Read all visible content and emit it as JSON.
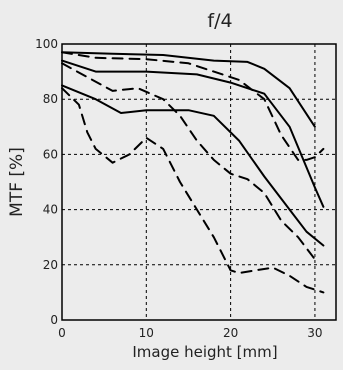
{
  "chart_data": {
    "type": "line",
    "title": "f/4",
    "xlabel": "Image height [mm]",
    "ylabel": "MTF [%]",
    "xlim": [
      0,
      32.5
    ],
    "ylim": [
      0,
      100
    ],
    "x_ticks": [
      {
        "value": 0,
        "label": "0"
      },
      {
        "value": 10,
        "label": "10"
      },
      {
        "value": 20,
        "label": "20"
      },
      {
        "value": 30,
        "label": "30"
      }
    ],
    "y_ticks": [
      {
        "value": 0,
        "label": "0"
      },
      {
        "value": 20,
        "label": "20"
      },
      {
        "value": 40,
        "label": "40"
      },
      {
        "value": 60,
        "label": "60"
      },
      {
        "value": 80,
        "label": "80"
      },
      {
        "value": 100,
        "label": "100"
      }
    ],
    "grid": true,
    "line_color": "#000000",
    "grid_color": "#000000",
    "background_color": "#ececec",
    "series": [
      {
        "style": "solid",
        "points": [
          [
            0,
            97
          ],
          [
            6,
            96.5
          ],
          [
            12,
            96
          ],
          [
            18,
            94
          ],
          [
            22,
            93.5
          ],
          [
            24,
            91
          ],
          [
            27,
            84
          ],
          [
            30,
            70
          ]
        ]
      },
      {
        "style": "solid",
        "points": [
          [
            0,
            94
          ],
          [
            4,
            90
          ],
          [
            10,
            90
          ],
          [
            16,
            89
          ],
          [
            20,
            86
          ],
          [
            24,
            82
          ],
          [
            27,
            70
          ],
          [
            30,
            48
          ],
          [
            31,
            41
          ]
        ]
      },
      {
        "style": "solid",
        "points": [
          [
            0,
            85
          ],
          [
            4,
            80
          ],
          [
            7,
            75
          ],
          [
            10,
            76
          ],
          [
            12,
            76
          ],
          [
            15,
            76
          ],
          [
            18,
            74
          ],
          [
            21,
            65
          ],
          [
            24,
            52
          ],
          [
            27,
            40
          ],
          [
            29,
            32
          ],
          [
            31,
            27
          ]
        ]
      },
      {
        "style": "dashed",
        "points": [
          [
            0,
            97
          ],
          [
            4,
            95
          ],
          [
            10,
            94.5
          ],
          [
            15,
            93
          ],
          [
            18,
            90
          ],
          [
            21,
            87
          ],
          [
            24,
            80
          ],
          [
            26,
            67
          ],
          [
            28,
            58
          ],
          [
            29,
            58
          ],
          [
            30,
            59
          ],
          [
            31,
            62
          ]
        ]
      },
      {
        "style": "dashed",
        "points": [
          [
            0,
            93
          ],
          [
            3,
            88
          ],
          [
            6,
            83
          ],
          [
            9,
            84
          ],
          [
            12,
            80
          ],
          [
            14,
            74
          ],
          [
            16,
            65
          ],
          [
            18,
            58
          ],
          [
            20,
            53
          ],
          [
            22,
            51
          ],
          [
            24,
            46
          ],
          [
            26,
            36
          ],
          [
            28,
            30
          ],
          [
            30,
            22
          ]
        ]
      },
      {
        "style": "dashed",
        "points": [
          [
            0,
            84
          ],
          [
            2,
            78
          ],
          [
            3,
            68
          ],
          [
            4,
            62
          ],
          [
            6,
            57
          ],
          [
            8,
            60
          ],
          [
            10,
            66
          ],
          [
            12,
            62
          ],
          [
            14,
            50
          ],
          [
            16,
            40
          ],
          [
            18,
            30
          ],
          [
            20,
            18
          ],
          [
            21,
            17
          ],
          [
            23,
            18
          ],
          [
            25,
            19
          ],
          [
            27,
            16
          ],
          [
            29,
            12
          ],
          [
            31,
            10
          ]
        ]
      }
    ]
  }
}
